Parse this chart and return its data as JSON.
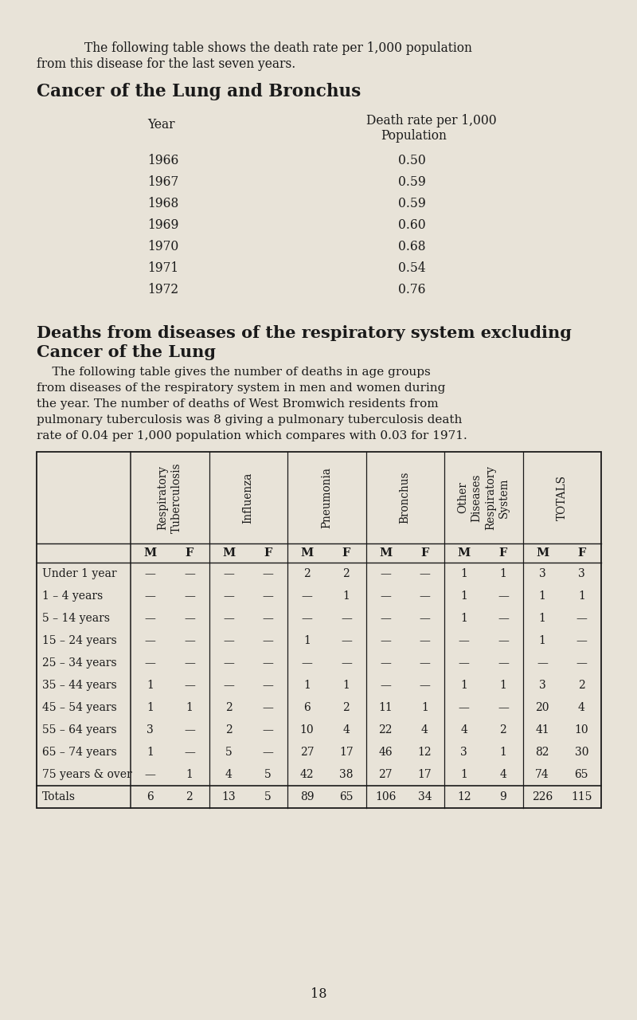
{
  "bg_color": "#e8e3d8",
  "text_color": "#1a1a1a",
  "intro_line1": "The following table shows the death rate per 1,000 population",
  "intro_line2": "from this disease for the last seven years.",
  "cancer_title": "Cancer of the Lung and Bronchus",
  "cancer_col1": "Year",
  "cancer_col2_line1": "Death rate per 1,000",
  "cancer_col2_line2": "Population",
  "cancer_years": [
    "1966",
    "1967",
    "1968",
    "1969",
    "1970",
    "1971",
    "1972"
  ],
  "cancer_rates": [
    "0.50",
    "0.59",
    "0.59",
    "0.60",
    "0.68",
    "0.54",
    "0.76"
  ],
  "resp_title_line1": "Deaths from diseases of the respiratory system excluding",
  "resp_title_line2": "Cancer of the Lung",
  "resp_body": [
    "    The following table gives the number of deaths in age groups",
    "from diseases of the respiratory system in men and women during",
    "the year. The number of deaths of West Bromwich residents from",
    "pulmonary tuberculosis was 8 giving a pulmonary tuberculosis death",
    "rate of 0.04 per 1,000 population which compares with 0.03 for 1971."
  ],
  "col_headers": [
    "Respiratory\nTuberculosis",
    "Influenza",
    "Pneumonia",
    "Bronchus",
    "Other\nDiseases\nRespiratory\nSystem",
    "TOTALS"
  ],
  "age_groups": [
    "Under 1 year",
    "1 – 4 years",
    "5 – 14 years",
    "15 – 24 years",
    "25 – 34 years",
    "35 – 44 years",
    "45 – 54 years",
    "55 – 64 years",
    "65 – 74 years",
    "75 years & over",
    "Totals"
  ],
  "table_data": [
    [
      "—",
      "—",
      "—",
      "—",
      "2",
      "2",
      "—",
      "—",
      "1",
      "1",
      "3",
      "3"
    ],
    [
      "—",
      "—",
      "—",
      "—",
      "—",
      "1",
      "—",
      "—",
      "1",
      "—",
      "1",
      "1"
    ],
    [
      "—",
      "—",
      "—",
      "—",
      "—",
      "—",
      "—",
      "—",
      "1",
      "—",
      "1",
      "—"
    ],
    [
      "—",
      "—",
      "—",
      "—",
      "1",
      "—",
      "—",
      "—",
      "—",
      "—",
      "1",
      "—"
    ],
    [
      "—",
      "—",
      "—",
      "—",
      "—",
      "—",
      "—",
      "—",
      "—",
      "—",
      "—",
      "—"
    ],
    [
      "1",
      "—",
      "—",
      "—",
      "1",
      "1",
      "—",
      "—",
      "1",
      "1",
      "3",
      "2"
    ],
    [
      "1",
      "1",
      "2",
      "—",
      "6",
      "2",
      "11",
      "1",
      "—",
      "—",
      "20",
      "4"
    ],
    [
      "3",
      "—",
      "2",
      "—",
      "10",
      "4",
      "22",
      "4",
      "4",
      "2",
      "41",
      "10"
    ],
    [
      "1",
      "—",
      "5",
      "—",
      "27",
      "17",
      "46",
      "12",
      "3",
      "1",
      "82",
      "30"
    ],
    [
      "—",
      "1",
      "4",
      "5",
      "42",
      "38",
      "27",
      "17",
      "1",
      "4",
      "74",
      "65"
    ],
    [
      "6",
      "2",
      "13",
      "5",
      "89",
      "65",
      "106",
      "34",
      "12",
      "9",
      "226",
      "115"
    ]
  ],
  "page_number": "18"
}
